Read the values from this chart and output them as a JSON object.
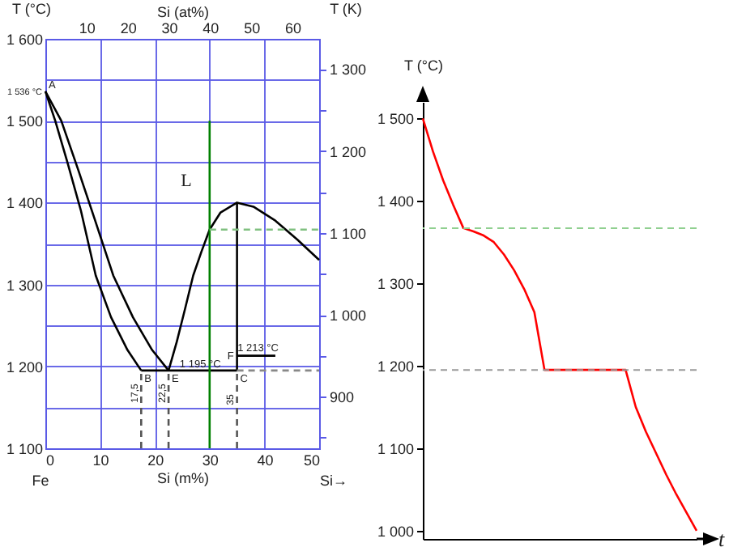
{
  "chart_data": [
    {
      "type": "line",
      "xlabel": "Si (m%)",
      "x2label": "Si (at%)",
      "ylabel": "T (°C)",
      "y2label": "T (K)",
      "xlim": [
        0,
        50
      ],
      "xticks": [
        0,
        10,
        20,
        30,
        40,
        50
      ],
      "x2lim": [
        0,
        66.5
      ],
      "x2ticks": [
        10,
        20,
        30,
        40,
        50,
        60
      ],
      "ylim": [
        1100,
        1600
      ],
      "yticks": [
        {
          "value": 1100,
          "label": "1 100"
        },
        {
          "value": 1150,
          "label": null
        },
        {
          "value": 1200,
          "label": "1 200"
        },
        {
          "value": 1250,
          "label": null
        },
        {
          "value": 1300,
          "label": "1 300"
        },
        {
          "value": 1350,
          "label": null
        },
        {
          "value": 1400,
          "label": "1 400"
        },
        {
          "value": 1450,
          "label": null
        },
        {
          "value": 1500,
          "label": "1 500"
        },
        {
          "value": 1550,
          "label": null
        },
        {
          "value": 1600,
          "label": "1 600"
        }
      ],
      "y2lim": [
        837,
        1337
      ],
      "y2ticks": [
        {
          "value": 850,
          "label": null
        },
        {
          "value": 900,
          "label": "900"
        },
        {
          "value": 950,
          "label": null
        },
        {
          "value": 1000,
          "label": "1 000"
        },
        {
          "value": 1050,
          "label": null
        },
        {
          "value": 1100,
          "label": "1 100"
        },
        {
          "value": 1150,
          "label": null
        },
        {
          "value": 1200,
          "label": "1 200"
        },
        {
          "value": 1250,
          "label": null
        },
        {
          "value": 1300,
          "label": "1 300"
        }
      ],
      "grid": true,
      "series": [
        {
          "color": "#000000",
          "x": [
            0,
            1.8,
            4,
            6.5,
            9.2,
            12,
            15,
            17.5
          ],
          "values": [
            1536,
            1500,
            1450,
            1390,
            1311,
            1260,
            1220,
            1195
          ]
        },
        {
          "color": "#000000",
          "x": [
            0,
            2.9,
            6,
            9,
            12.4,
            16,
            19.5,
            22.5
          ],
          "values": [
            1536,
            1500,
            1440,
            1380,
            1311,
            1260,
            1220,
            1195
          ]
        },
        {
          "color": "#000000",
          "x": [
            22.5,
            24,
            25.5,
            27,
            28.5,
            30,
            32,
            35,
            38,
            42,
            46,
            50
          ],
          "values": [
            1195,
            1230,
            1270,
            1311,
            1340,
            1367,
            1388,
            1400,
            1395,
            1378,
            1355,
            1330
          ]
        },
        {
          "color": "#000000",
          "x": [
            17.5,
            35
          ],
          "values": [
            1195,
            1195
          ]
        },
        {
          "color": "#000000",
          "x": [
            35,
            35
          ],
          "values": [
            1195,
            1400
          ]
        },
        {
          "color": "#000000",
          "x": [
            35,
            42
          ],
          "values": [
            1213,
            1213
          ]
        },
        {
          "color": "#008000",
          "x": [
            30,
            30
          ],
          "values": [
            1100,
            1500
          ]
        },
        {
          "color": "#555555",
          "line_style": "dashed",
          "x": [
            17.5,
            17.5
          ],
          "values": [
            1100,
            1195
          ]
        },
        {
          "color": "#555555",
          "line_style": "dashed",
          "x": [
            22.5,
            22.5
          ],
          "values": [
            1100,
            1195
          ]
        },
        {
          "color": "#555555",
          "line_style": "dashed",
          "x": [
            35,
            35
          ],
          "values": [
            1100,
            1195
          ]
        },
        {
          "color": "#80c080",
          "line_style": "dashed",
          "x": [
            30,
            50
          ],
          "values": [
            1367,
            1367
          ]
        },
        {
          "color": "#888888",
          "line_style": "dashed",
          "x": [
            35,
            50
          ],
          "values": [
            1195,
            1195
          ]
        }
      ],
      "annotations": [
        "Fe",
        "Si→",
        "L",
        {
          "text": "1 536 °C",
          "x": 0,
          "y": 1536
        },
        {
          "text": "A",
          "x": 0,
          "y": 1536
        },
        {
          "text": "B",
          "x": 17.5,
          "y": 1195
        },
        {
          "text": "E",
          "x": 22.5,
          "y": 1195
        },
        {
          "text": "C",
          "x": 35,
          "y": 1195
        },
        {
          "text": "F",
          "x": 35,
          "y": 1213
        },
        {
          "text": "1 213 °C",
          "x": 42,
          "y": 1213
        },
        {
          "text": "1 195 °C",
          "x": 35,
          "y": 1195
        },
        "17,5",
        "22,5",
        "35"
      ]
    },
    {
      "type": "line",
      "xlabel": "t",
      "ylabel": "T (°C)",
      "ylim": [
        990,
        1520
      ],
      "yticks": [
        {
          "value": 1000,
          "label": "1 000"
        },
        {
          "value": 1100,
          "label": "1 100"
        },
        {
          "value": 1200,
          "label": "1 200"
        },
        {
          "value": 1300,
          "label": "1 300"
        },
        {
          "value": 1400,
          "label": "1 400"
        },
        {
          "value": 1500,
          "label": "1 500"
        }
      ],
      "tick_labels": "y",
      "categories": [
        null,
        null,
        null,
        null,
        null,
        null,
        null,
        null,
        null,
        null,
        null,
        null,
        null,
        null,
        null,
        null,
        null,
        null,
        null,
        null,
        null,
        null,
        null,
        null,
        null,
        null,
        null,
        null
      ],
      "series": [
        {
          "color": "#ff0000",
          "values": [
            1500,
            1460,
            1425,
            1395,
            1367,
            1363,
            1358,
            1350,
            1335,
            1316,
            1293,
            1265,
            1195,
            1195,
            1195,
            1195,
            1195,
            1195,
            1195,
            1195,
            1195,
            1150,
            1120,
            1094,
            1068,
            1044,
            1022,
            1000
          ]
        }
      ],
      "ref_lines": [
        {
          "axis": "y",
          "value": 1367,
          "color": "#90d090",
          "line_style": "dashed"
        },
        {
          "axis": "y",
          "value": 1195,
          "color": "#999999",
          "line_style": "dashed"
        }
      ]
    }
  ]
}
